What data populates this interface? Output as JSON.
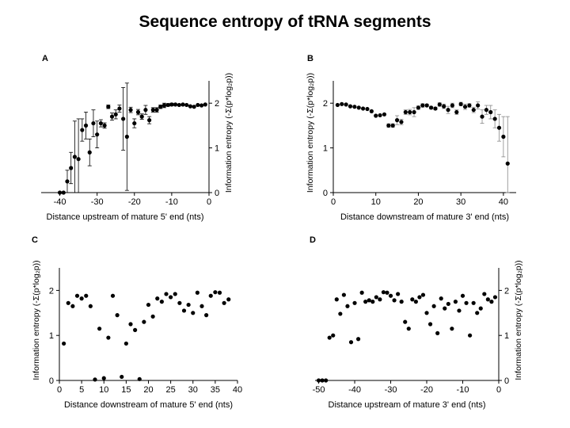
{
  "page": {
    "title": "Sequence entropy of tRNA segments"
  },
  "chart_data": [
    {
      "panel": "A",
      "type": "scatter",
      "error_bars": true,
      "xlabel": "Distance upstream of mature 5' end (nts)",
      "ylabel": "Information entropy (-Σ(p*log₂p))",
      "y_axis_side": "right",
      "xlim": [
        -45,
        0
      ],
      "ylim": [
        0,
        2.5
      ],
      "xticks": [
        -40,
        -30,
        -20,
        -10,
        0
      ],
      "yticks": [
        0,
        1,
        2
      ],
      "grid": false,
      "points": [
        {
          "x": -40,
          "y": 0.0,
          "err": 0
        },
        {
          "x": -39,
          "y": 0.0,
          "err": 0
        },
        {
          "x": -38,
          "y": 0.25,
          "err": 0.25
        },
        {
          "x": -37,
          "y": 0.55,
          "err": 0.35
        },
        {
          "x": -36,
          "y": 0.8,
          "err": 0.8
        },
        {
          "x": -35,
          "y": 0.75,
          "err": 0.9
        },
        {
          "x": -34,
          "y": 1.4,
          "err": 0.25
        },
        {
          "x": -33,
          "y": 1.5,
          "err": 0.3
        },
        {
          "x": -32,
          "y": 0.9,
          "err": 0.3
        },
        {
          "x": -31,
          "y": 1.55,
          "err": 0.3
        },
        {
          "x": -30,
          "y": 1.3,
          "err": 0.3
        },
        {
          "x": -29,
          "y": 1.55,
          "err": 0.08
        },
        {
          "x": -28,
          "y": 1.5,
          "err": 0.06
        },
        {
          "x": -27,
          "y": 1.92,
          "err": 0.04
        },
        {
          "x": -26,
          "y": 1.7,
          "err": 0.08
        },
        {
          "x": -25,
          "y": 1.75,
          "err": 0.1
        },
        {
          "x": -24,
          "y": 1.88,
          "err": 0.08
        },
        {
          "x": -23,
          "y": 1.65,
          "err": 0.7
        },
        {
          "x": -22,
          "y": 1.25,
          "err": 1.2
        },
        {
          "x": -21,
          "y": 1.85,
          "err": 0.06
        },
        {
          "x": -20,
          "y": 1.55,
          "err": 0.1
        },
        {
          "x": -19,
          "y": 1.8,
          "err": 0.06
        },
        {
          "x": -18,
          "y": 1.7,
          "err": 0.06
        },
        {
          "x": -17,
          "y": 1.85,
          "err": 0.1
        },
        {
          "x": -16,
          "y": 1.62,
          "err": 0.08
        },
        {
          "x": -15,
          "y": 1.85,
          "err": 0.05
        },
        {
          "x": -14,
          "y": 1.85,
          "err": 0.05
        },
        {
          "x": -13,
          "y": 1.92,
          "err": 0.04
        },
        {
          "x": -12,
          "y": 1.95,
          "err": 0.05
        },
        {
          "x": -11,
          "y": 1.96,
          "err": 0.03
        },
        {
          "x": -10,
          "y": 1.97,
          "err": 0.03
        },
        {
          "x": -9,
          "y": 1.97,
          "err": 0
        },
        {
          "x": -8,
          "y": 1.96,
          "err": 0
        },
        {
          "x": -7,
          "y": 1.97,
          "err": 0
        },
        {
          "x": -6,
          "y": 1.96,
          "err": 0
        },
        {
          "x": -5,
          "y": 1.93,
          "err": 0
        },
        {
          "x": -4,
          "y": 1.92,
          "err": 0
        },
        {
          "x": -3,
          "y": 1.96,
          "err": 0
        },
        {
          "x": -2,
          "y": 1.95,
          "err": 0
        },
        {
          "x": -1,
          "y": 1.97,
          "err": 0
        }
      ]
    },
    {
      "panel": "B",
      "type": "scatter",
      "error_bars": true,
      "xlabel": "Distance downstream of mature 3' end (nts)",
      "ylabel": "Information entropy (-Σ(p*log₂p))",
      "y_axis_side": "left",
      "xlim": [
        0,
        43
      ],
      "ylim": [
        0,
        2.5
      ],
      "xticks": [
        0,
        10,
        20,
        30,
        40
      ],
      "yticks": [
        0,
        1,
        2
      ],
      "grid": false,
      "points": [
        {
          "x": 1,
          "y": 1.96,
          "err": 0
        },
        {
          "x": 2,
          "y": 1.98,
          "err": 0
        },
        {
          "x": 3,
          "y": 1.97,
          "err": 0
        },
        {
          "x": 4,
          "y": 1.93,
          "err": 0
        },
        {
          "x": 5,
          "y": 1.92,
          "err": 0
        },
        {
          "x": 6,
          "y": 1.9,
          "err": 0
        },
        {
          "x": 7,
          "y": 1.88,
          "err": 0
        },
        {
          "x": 8,
          "y": 1.87,
          "err": 0
        },
        {
          "x": 9,
          "y": 1.82,
          "err": 0
        },
        {
          "x": 10,
          "y": 1.72,
          "err": 0
        },
        {
          "x": 11,
          "y": 1.73,
          "err": 0
        },
        {
          "x": 12,
          "y": 1.75,
          "err": 0
        },
        {
          "x": 13,
          "y": 1.5,
          "err": 0.04
        },
        {
          "x": 14,
          "y": 1.5,
          "err": 0.04
        },
        {
          "x": 15,
          "y": 1.62,
          "err": 0.1
        },
        {
          "x": 16,
          "y": 1.58,
          "err": 0.06
        },
        {
          "x": 17,
          "y": 1.8,
          "err": 0.05
        },
        {
          "x": 18,
          "y": 1.8,
          "err": 0.06
        },
        {
          "x": 19,
          "y": 1.8,
          "err": 0.1
        },
        {
          "x": 20,
          "y": 1.9,
          "err": 0.04
        },
        {
          "x": 21,
          "y": 1.95,
          "err": 0.04
        },
        {
          "x": 22,
          "y": 1.95,
          "err": 0.03
        },
        {
          "x": 23,
          "y": 1.9,
          "err": 0.03
        },
        {
          "x": 24,
          "y": 1.88,
          "err": 0.03
        },
        {
          "x": 25,
          "y": 1.97,
          "err": 0.04
        },
        {
          "x": 26,
          "y": 1.93,
          "err": 0.05
        },
        {
          "x": 27,
          "y": 1.85,
          "err": 0.08
        },
        {
          "x": 28,
          "y": 1.95,
          "err": 0.05
        },
        {
          "x": 29,
          "y": 1.8,
          "err": 0.05
        },
        {
          "x": 30,
          "y": 1.98,
          "err": 0.04
        },
        {
          "x": 31,
          "y": 1.92,
          "err": 0.06
        },
        {
          "x": 32,
          "y": 1.95,
          "err": 0.04
        },
        {
          "x": 33,
          "y": 1.85,
          "err": 0.06
        },
        {
          "x": 34,
          "y": 1.95,
          "err": 0.08
        },
        {
          "x": 35,
          "y": 1.7,
          "err": 0.15
        },
        {
          "x": 36,
          "y": 1.85,
          "err": 0.1
        },
        {
          "x": 37,
          "y": 1.8,
          "err": 0.15
        },
        {
          "x": 38,
          "y": 1.65,
          "err": 0.2
        },
        {
          "x": 39,
          "y": 1.45,
          "err": 0.3
        },
        {
          "x": 40,
          "y": 1.25,
          "err": 0.45
        },
        {
          "x": 41,
          "y": 0.65,
          "err": 1.05
        }
      ]
    },
    {
      "panel": "C",
      "type": "scatter",
      "error_bars": false,
      "xlabel": "Distance downstream of mature 5' end (nts)",
      "ylabel": "Information entropy (-Σ(p*log₂p))",
      "y_axis_side": "left",
      "xlim": [
        0,
        40
      ],
      "ylim": [
        0,
        2.5
      ],
      "xticks": [
        0,
        5,
        10,
        15,
        20,
        25,
        30,
        35,
        40
      ],
      "yticks": [
        0,
        1,
        2
      ],
      "grid": false,
      "points": [
        {
          "x": 1,
          "y": 0.82
        },
        {
          "x": 2,
          "y": 1.72
        },
        {
          "x": 3,
          "y": 1.65
        },
        {
          "x": 4,
          "y": 1.88
        },
        {
          "x": 5,
          "y": 1.82
        },
        {
          "x": 6,
          "y": 1.88
        },
        {
          "x": 7,
          "y": 1.65
        },
        {
          "x": 8,
          "y": 0.02
        },
        {
          "x": 9,
          "y": 1.15
        },
        {
          "x": 10,
          "y": 0.05
        },
        {
          "x": 11,
          "y": 0.95
        },
        {
          "x": 12,
          "y": 1.88
        },
        {
          "x": 13,
          "y": 1.45
        },
        {
          "x": 14,
          "y": 0.08
        },
        {
          "x": 15,
          "y": 0.82
        },
        {
          "x": 16,
          "y": 1.25
        },
        {
          "x": 17,
          "y": 1.12
        },
        {
          "x": 18,
          "y": 0.03
        },
        {
          "x": 19,
          "y": 1.3
        },
        {
          "x": 20,
          "y": 1.68
        },
        {
          "x": 21,
          "y": 1.42
        },
        {
          "x": 22,
          "y": 1.82
        },
        {
          "x": 23,
          "y": 1.75
        },
        {
          "x": 24,
          "y": 1.92
        },
        {
          "x": 25,
          "y": 1.85
        },
        {
          "x": 26,
          "y": 1.92
        },
        {
          "x": 27,
          "y": 1.72
        },
        {
          "x": 28,
          "y": 1.55
        },
        {
          "x": 29,
          "y": 1.68
        },
        {
          "x": 30,
          "y": 1.5
        },
        {
          "x": 31,
          "y": 1.95
        },
        {
          "x": 32,
          "y": 1.65
        },
        {
          "x": 33,
          "y": 1.45
        },
        {
          "x": 34,
          "y": 1.88
        },
        {
          "x": 35,
          "y": 1.96
        },
        {
          "x": 36,
          "y": 1.95
        },
        {
          "x": 37,
          "y": 1.72
        },
        {
          "x": 38,
          "y": 1.8
        }
      ]
    },
    {
      "panel": "D",
      "type": "scatter",
      "error_bars": false,
      "xlabel": "Distance upstream of mature 3' end (nts)",
      "ylabel": "Information entropy (-Σ(p*log₂p))",
      "y_axis_side": "right",
      "xlim": [
        -51,
        0
      ],
      "ylim": [
        0,
        2.5
      ],
      "xticks": [
        -50,
        -40,
        -30,
        -20,
        -10,
        0
      ],
      "yticks": [
        0,
        1,
        2
      ],
      "grid": false,
      "points": [
        {
          "x": -50,
          "y": 0.0
        },
        {
          "x": -49,
          "y": 0.0
        },
        {
          "x": -48,
          "y": 0.0
        },
        {
          "x": -47,
          "y": 0.95
        },
        {
          "x": -46,
          "y": 1.0
        },
        {
          "x": -45,
          "y": 1.8
        },
        {
          "x": -44,
          "y": 1.48
        },
        {
          "x": -43,
          "y": 1.9
        },
        {
          "x": -42,
          "y": 1.65
        },
        {
          "x": -41,
          "y": 0.85
        },
        {
          "x": -40,
          "y": 1.72
        },
        {
          "x": -39,
          "y": 0.92
        },
        {
          "x": -38,
          "y": 1.95
        },
        {
          "x": -37,
          "y": 1.75
        },
        {
          "x": -36,
          "y": 1.78
        },
        {
          "x": -35,
          "y": 1.75
        },
        {
          "x": -34,
          "y": 1.85
        },
        {
          "x": -33,
          "y": 1.8
        },
        {
          "x": -32,
          "y": 1.96
        },
        {
          "x": -31,
          "y": 1.95
        },
        {
          "x": -30,
          "y": 1.88
        },
        {
          "x": -29,
          "y": 1.78
        },
        {
          "x": -28,
          "y": 1.92
        },
        {
          "x": -27,
          "y": 1.75
        },
        {
          "x": -26,
          "y": 1.3
        },
        {
          "x": -25,
          "y": 1.15
        },
        {
          "x": -24,
          "y": 1.8
        },
        {
          "x": -23,
          "y": 1.75
        },
        {
          "x": -22,
          "y": 1.85
        },
        {
          "x": -21,
          "y": 1.9
        },
        {
          "x": -20,
          "y": 1.5
        },
        {
          "x": -19,
          "y": 1.25
        },
        {
          "x": -18,
          "y": 1.65
        },
        {
          "x": -17,
          "y": 1.05
        },
        {
          "x": -16,
          "y": 1.82
        },
        {
          "x": -15,
          "y": 1.6
        },
        {
          "x": -14,
          "y": 1.7
        },
        {
          "x": -13,
          "y": 1.15
        },
        {
          "x": -12,
          "y": 1.75
        },
        {
          "x": -11,
          "y": 1.55
        },
        {
          "x": -10,
          "y": 1.88
        },
        {
          "x": -9,
          "y": 1.72
        },
        {
          "x": -8,
          "y": 1.0
        },
        {
          "x": -7,
          "y": 1.72
        },
        {
          "x": -6,
          "y": 1.5
        },
        {
          "x": -5,
          "y": 1.6
        },
        {
          "x": -4,
          "y": 1.92
        },
        {
          "x": -3,
          "y": 1.8
        },
        {
          "x": -2,
          "y": 1.75
        },
        {
          "x": -1,
          "y": 1.85
        }
      ]
    }
  ]
}
